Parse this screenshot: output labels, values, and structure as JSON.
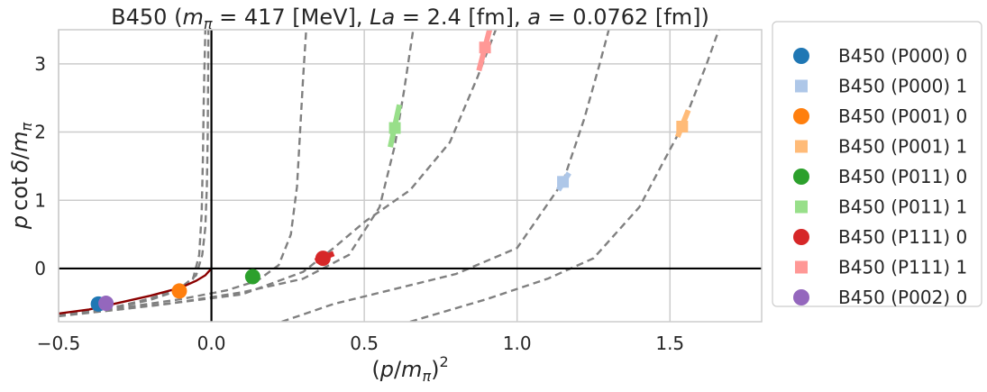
{
  "chart_data": {
    "type": "scatter",
    "title": "B450 (mπ = 417 [MeV], La = 2.4 [fm], a = 0.0762 [fm])",
    "title_parts": {
      "prefix": "B450 (",
      "m_sym": "m",
      "pi_sub": "π",
      "eq1": " = 417 [MeV], ",
      "la_sym": "La",
      "eq2": " = 2.4 [fm], ",
      "a_sym": "a",
      "eq3": " = 0.0762 [fm])"
    },
    "xlabel": "(p/mπ)²",
    "xlabel_parts": {
      "open": "(",
      "p": "p",
      "slash": "/",
      "m": "m",
      "pi": "π",
      "close": ")",
      "sq": "2"
    },
    "ylabel": "p cot δ/mπ",
    "ylabel_parts": {
      "p": "p",
      "cot": "cot",
      "delta": "δ",
      "slash": "/",
      "m": "m",
      "pi": "π"
    },
    "xlim": [
      -0.5,
      1.8
    ],
    "ylim": [
      -0.78,
      3.5
    ],
    "xticks": [
      -0.5,
      0.0,
      0.5,
      1.0,
      1.5
    ],
    "xtick_labels": [
      "−0.5",
      "0.0",
      "0.5",
      "1.0",
      "1.5"
    ],
    "yticks": [
      0,
      1,
      2,
      3
    ],
    "ytick_labels": [
      "0",
      "1",
      "2",
      "3"
    ],
    "grid": true,
    "legend_position": "outside-right",
    "series": [
      {
        "name": "B450 (P000) 0",
        "marker": "circle",
        "color": "#1f77b4",
        "x": -0.37,
        "y": -0.52,
        "err_seg": [
          [
            -0.385,
            -0.53
          ],
          [
            -0.355,
            -0.51
          ]
        ]
      },
      {
        "name": "B450 (P000) 1",
        "marker": "square",
        "color": "#aec7e8",
        "x": 1.15,
        "y": 1.27,
        "err_seg": [
          [
            1.135,
            1.15
          ],
          [
            1.17,
            1.4
          ]
        ]
      },
      {
        "name": "B450 (P001) 0",
        "marker": "circle",
        "color": "#ff7f0e",
        "x": -0.105,
        "y": -0.33,
        "err_seg": [
          [
            -0.12,
            -0.35
          ],
          [
            -0.09,
            -0.31
          ]
        ]
      },
      {
        "name": "B450 (P001) 1",
        "marker": "square",
        "color": "#ffbb78",
        "x": 1.54,
        "y": 2.08,
        "err_seg": [
          [
            1.525,
            1.93
          ],
          [
            1.56,
            2.32
          ]
        ]
      },
      {
        "name": "B450 (P011) 0",
        "marker": "circle",
        "color": "#2ca02c",
        "x": 0.135,
        "y": -0.12,
        "err_seg": [
          [
            0.12,
            -0.14
          ],
          [
            0.15,
            -0.1
          ]
        ]
      },
      {
        "name": "B450 (P011) 1",
        "marker": "square",
        "color": "#98df8a",
        "x": 0.6,
        "y": 2.06,
        "err_seg": [
          [
            0.585,
            1.78
          ],
          [
            0.615,
            2.4
          ]
        ]
      },
      {
        "name": "B450 (P111) 0",
        "marker": "circle",
        "color": "#d62728",
        "x": 0.365,
        "y": 0.15,
        "err_seg": [
          [
            0.34,
            0.11
          ],
          [
            0.4,
            0.22
          ]
        ]
      },
      {
        "name": "B450 (P111) 1",
        "marker": "square",
        "color": "#ff9896",
        "x": 0.895,
        "y": 3.24,
        "err_seg": [
          [
            0.875,
            2.9
          ],
          [
            0.91,
            3.5
          ]
        ]
      },
      {
        "name": "B450 (P002) 0",
        "marker": "circle",
        "color": "#9467bd",
        "x": -0.345,
        "y": -0.51,
        "err_seg": [
          [
            -0.36,
            -0.52
          ],
          [
            -0.33,
            -0.5
          ]
        ]
      }
    ],
    "dashed_curves": [
      [
        [
          -0.5,
          -0.66
        ],
        [
          -0.4,
          -0.62
        ],
        [
          -0.3,
          -0.55
        ],
        [
          -0.2,
          -0.44
        ],
        [
          -0.1,
          -0.28
        ],
        [
          -0.05,
          -0.1
        ],
        [
          -0.03,
          0.2
        ],
        [
          -0.02,
          0.6
        ],
        [
          -0.015,
          1.2
        ],
        [
          -0.012,
          2.0
        ],
        [
          -0.01,
          3.5
        ]
      ],
      [
        [
          -0.5,
          -0.67
        ],
        [
          -0.4,
          -0.63
        ],
        [
          -0.3,
          -0.56
        ],
        [
          -0.2,
          -0.46
        ],
        [
          -0.1,
          -0.31
        ],
        [
          -0.06,
          -0.15
        ],
        [
          -0.04,
          0.2
        ],
        [
          -0.032,
          0.8
        ],
        [
          -0.028,
          1.6
        ],
        [
          -0.025,
          2.5
        ],
        [
          -0.02,
          3.5
        ]
      ],
      [
        [
          -0.5,
          -0.68
        ],
        [
          -0.3,
          -0.58
        ],
        [
          -0.1,
          -0.45
        ],
        [
          0.05,
          -0.32
        ],
        [
          0.15,
          -0.18
        ],
        [
          0.22,
          0.05
        ],
        [
          0.26,
          0.5
        ],
        [
          0.28,
          1.2
        ],
        [
          0.29,
          2.0
        ],
        [
          0.3,
          2.8
        ],
        [
          0.31,
          3.5
        ]
      ],
      [
        [
          -0.5,
          -0.69
        ],
        [
          -0.3,
          -0.6
        ],
        [
          -0.1,
          -0.49
        ],
        [
          0.1,
          -0.35
        ],
        [
          0.3,
          -0.15
        ],
        [
          0.45,
          0.2
        ],
        [
          0.55,
          0.9
        ],
        [
          0.6,
          1.8
        ],
        [
          0.63,
          2.6
        ],
        [
          0.66,
          3.5
        ]
      ],
      [
        [
          -0.5,
          -0.7
        ],
        [
          -0.2,
          -0.55
        ],
        [
          0.1,
          -0.38
        ],
        [
          0.3,
          -0.05
        ],
        [
          0.4,
          0.3
        ],
        [
          0.5,
          0.68
        ],
        [
          0.65,
          1.15
        ],
        [
          0.78,
          1.85
        ],
        [
          0.87,
          2.8
        ],
        [
          0.93,
          3.5
        ]
      ],
      [
        [
          0.23,
          -0.78
        ],
        [
          0.4,
          -0.52
        ],
        [
          0.6,
          -0.3
        ],
        [
          0.8,
          -0.08
        ],
        [
          1.0,
          0.3
        ],
        [
          1.15,
          1.27
        ],
        [
          1.22,
          2.2
        ],
        [
          1.27,
          3.0
        ],
        [
          1.3,
          3.5
        ]
      ],
      [
        [
          0.65,
          -0.78
        ],
        [
          0.9,
          -0.45
        ],
        [
          1.1,
          -0.15
        ],
        [
          1.25,
          0.15
        ],
        [
          1.4,
          0.9
        ],
        [
          1.54,
          2.08
        ],
        [
          1.62,
          3.0
        ],
        [
          1.66,
          3.5
        ]
      ]
    ],
    "solid_curve": [
      [
        -0.5,
        -0.66
      ],
      [
        -0.4,
        -0.6
      ],
      [
        -0.3,
        -0.5
      ],
      [
        -0.2,
        -0.4
      ],
      [
        -0.1,
        -0.28
      ],
      [
        -0.05,
        -0.18
      ],
      [
        -0.02,
        -0.1
      ],
      [
        -0.01,
        -0.05
      ],
      [
        0.0,
        0.0
      ]
    ],
    "axis_lines": {
      "x0": 0,
      "y0": 0
    }
  }
}
